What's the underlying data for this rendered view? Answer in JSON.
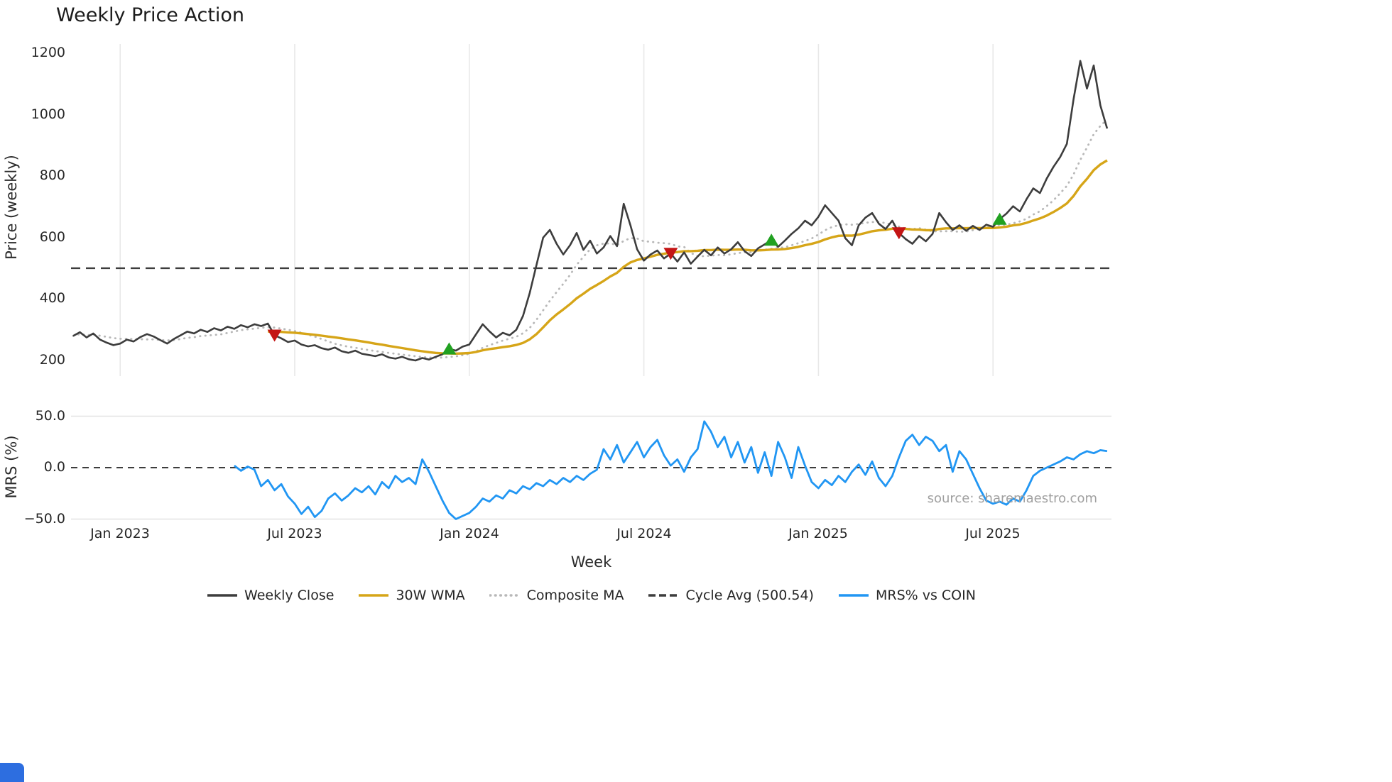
{
  "source_note": "source: sharemaestro.com",
  "colors": {
    "weekly_close": "#3d3d3d",
    "wma_30w": "#d6a518",
    "composite_ma": "#b8b8b8",
    "cycle_avg": "#3d3d3d",
    "mrs": "#2196f3",
    "buy_marker": "#21a121",
    "sell_marker": "#c41515",
    "grid": "#e8e8e8",
    "accent_corner": "#2d6ee0"
  },
  "legend": [
    {
      "label": "Weekly Close",
      "style": "solid",
      "color": "#3d3d3d"
    },
    {
      "label": "30W WMA",
      "style": "solid",
      "color": "#d6a518"
    },
    {
      "label": "Composite MA",
      "style": "dotted",
      "color": "#b8b8b8"
    },
    {
      "label": "Cycle Avg (500.54)",
      "style": "dashed",
      "color": "#3d3d3d"
    },
    {
      "label": "MRS% vs COIN",
      "style": "solid",
      "color": "#2196f3"
    }
  ],
  "chart_data": {
    "type": "line",
    "title": "Weekly Price Action",
    "xlabel": "Week",
    "x_unit": "week_index",
    "xticks": [
      {
        "week": 7,
        "label": "Jan 2023"
      },
      {
        "week": 33,
        "label": "Jul 2023"
      },
      {
        "week": 59,
        "label": "Jan 2024"
      },
      {
        "week": 85,
        "label": "Jul 2024"
      },
      {
        "week": 111,
        "label": "Jan 2025"
      },
      {
        "week": 137,
        "label": "Jul 2025"
      }
    ],
    "price_panel": {
      "ylabel": "Price (weekly)",
      "yticks": [
        200,
        400,
        600,
        800,
        1000,
        1200
      ],
      "ylim": [
        170,
        1230
      ],
      "cycle_avg": 500.54,
      "wma_window": 30,
      "composite_window": 10,
      "weekly_close": [
        280,
        292,
        275,
        288,
        268,
        258,
        250,
        255,
        268,
        262,
        276,
        286,
        278,
        266,
        255,
        270,
        282,
        294,
        288,
        300,
        293,
        305,
        298,
        310,
        303,
        315,
        308,
        318,
        312,
        320,
        282,
        272,
        260,
        265,
        252,
        246,
        250,
        240,
        235,
        242,
        230,
        225,
        232,
        222,
        218,
        214,
        220,
        210,
        206,
        212,
        204,
        200,
        208,
        203,
        212,
        220,
        238,
        232,
        245,
        252,
        285,
        318,
        295,
        275,
        290,
        282,
        300,
        345,
        420,
        510,
        600,
        625,
        580,
        545,
        575,
        615,
        560,
        590,
        548,
        568,
        605,
        572,
        710,
        640,
        562,
        525,
        545,
        558,
        532,
        548,
        522,
        552,
        515,
        538,
        560,
        542,
        568,
        548,
        562,
        585,
        556,
        540,
        565,
        578,
        592,
        570,
        590,
        612,
        630,
        655,
        640,
        668,
        705,
        680,
        655,
        598,
        575,
        640,
        665,
        680,
        645,
        628,
        655,
        615,
        595,
        580,
        605,
        588,
        612,
        680,
        650,
        625,
        640,
        622,
        638,
        625,
        642,
        635,
        660,
        678,
        702,
        685,
        725,
        760,
        745,
        792,
        830,
        862,
        905,
        1050,
        1175,
        1085,
        1160,
        1030,
        955
      ],
      "buy_signals": [
        {
          "week": 56,
          "price": 238
        },
        {
          "week": 104,
          "price": 592
        },
        {
          "week": 138,
          "price": 660
        }
      ],
      "sell_signals": [
        {
          "week": 30,
          "price": 282
        },
        {
          "week": 89,
          "price": 548
        },
        {
          "week": 123,
          "price": 615
        }
      ]
    },
    "mrs_panel": {
      "ylabel": "MRS (%)",
      "series_name": "MRS% vs COIN",
      "yticks": [
        50,
        0,
        -50
      ],
      "ytick_labels": [
        "50.0",
        "0.0",
        "−50.0"
      ],
      "ylim": [
        -60,
        55
      ],
      "values": [
        null,
        null,
        null,
        null,
        null,
        null,
        null,
        null,
        null,
        null,
        null,
        null,
        null,
        null,
        null,
        null,
        null,
        null,
        null,
        null,
        null,
        null,
        null,
        null,
        2,
        -3,
        1,
        -2,
        -18,
        -12,
        -22,
        -16,
        -28,
        -35,
        -45,
        -38,
        -48,
        -42,
        -30,
        -25,
        -32,
        -27,
        -20,
        -24,
        -18,
        -26,
        -14,
        -20,
        -8,
        -14,
        -10,
        -16,
        8,
        -4,
        -18,
        -32,
        -44,
        -50,
        -47,
        -44,
        -38,
        -30,
        -33,
        -27,
        -30,
        -22,
        -25,
        -18,
        -21,
        -15,
        -18,
        -12,
        -16,
        -10,
        -14,
        -8,
        -12,
        -6,
        -2,
        18,
        8,
        22,
        5,
        15,
        25,
        10,
        20,
        27,
        12,
        2,
        8,
        -4,
        10,
        18,
        45,
        35,
        20,
        30,
        10,
        25,
        5,
        20,
        -5,
        15,
        -8,
        25,
        10,
        -10,
        20,
        2,
        -14,
        -20,
        -12,
        -17,
        -8,
        -14,
        -4,
        3,
        -7,
        6,
        -10,
        -18,
        -8,
        10,
        26,
        32,
        22,
        30,
        26,
        16,
        22,
        -4,
        16,
        8,
        -6,
        -20,
        -32,
        -35,
        -33,
        -36,
        -30,
        -33,
        -22,
        -8,
        -3,
        0,
        3,
        6,
        10,
        8,
        13,
        16,
        14,
        17,
        16
      ]
    }
  }
}
